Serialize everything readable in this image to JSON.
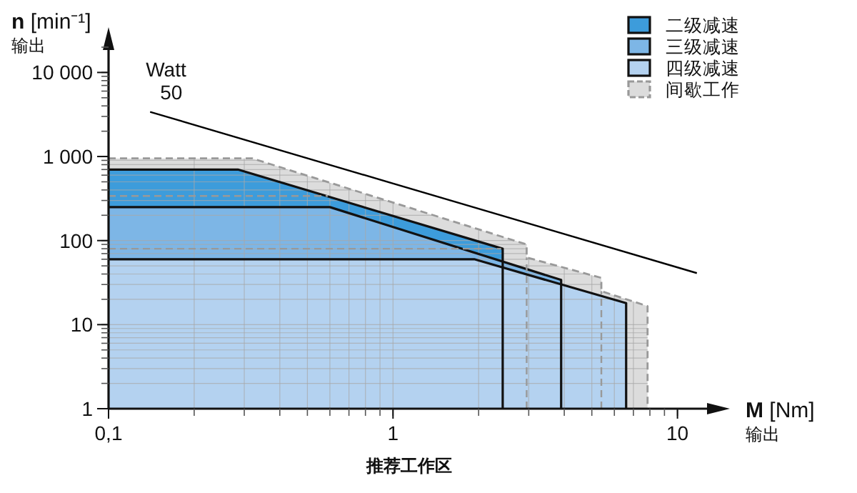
{
  "chart_data": {
    "type": "area",
    "ylabel": "n [min⁻¹]\n输出",
    "xlabel": "M [Nm]\n输出",
    "annotations": [
      {
        "text": "Watt\n50",
        "x": 0.14,
        "y": 3400
      },
      "推荐工作区"
    ],
    "log": "xy",
    "xlim": [
      0.1,
      13
    ],
    "ylim": [
      1,
      20000
    ],
    "xticks": [
      {
        "value": 0.1,
        "label": "0,1"
      },
      1,
      10
    ],
    "yticks": [
      1,
      10,
      100,
      {
        "value": 1000,
        "label": "1 000"
      },
      {
        "value": 10000,
        "label": "10 000"
      }
    ],
    "grid": true,
    "legend": "top right",
    "series": [
      {
        "name": "间歇工作",
        "color": "#dcdcdc",
        "line_style": "dashed",
        "x": [
          0.1,
          0.32,
          2.95,
          2.95,
          5.4,
          5.4,
          7.85,
          7.85
        ],
        "values": [
          950,
          950,
          90,
          63,
          36,
          25,
          16.6,
          1
        ]
      },
      {
        "name": "二级减速",
        "color": "#3d9cdb",
        "x": [
          0.1,
          0.285,
          2.43,
          2.43
        ],
        "values": [
          700,
          700,
          80,
          1
        ]
      },
      {
        "name": "三级减速",
        "color": "#7db6e6",
        "x": [
          0.1,
          0.6,
          3.9,
          3.9
        ],
        "values": [
          250,
          250,
          34,
          1
        ]
      },
      {
        "name": "四级减速",
        "color": "#b4d2f0",
        "x": [
          0.1,
          1.93,
          6.6,
          6.6
        ],
        "values": [
          60,
          60,
          18,
          1
        ]
      },
      {
        "type": "line",
        "color": "#999999",
        "line_style": "dashed",
        "x": [
          0.1,
          0.59
        ],
        "values": [
          340,
          340
        ]
      },
      {
        "type": "line",
        "color": "#999999",
        "line_style": "dashed",
        "x": [
          0.1,
          2.4
        ],
        "values": [
          80,
          80
        ]
      },
      {
        "type": "line",
        "color": "#999999",
        "line_style": "dashed",
        "x": [
          2.95,
          2.95
        ],
        "values": [
          1,
          63
        ]
      },
      {
        "type": "line",
        "color": "#999999",
        "line_style": "dashed",
        "x": [
          5.4,
          5.4
        ],
        "values": [
          1,
          25
        ]
      },
      {
        "type": "line",
        "color": "#000000",
        "x": [
          0.14,
          11.7
        ],
        "values": [
          3400,
          41
        ]
      }
    ]
  }
}
